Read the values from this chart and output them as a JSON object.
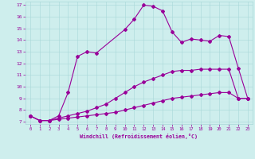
{
  "xlabel": "Windchill (Refroidissement éolien,°C)",
  "bg_color": "#ceeeed",
  "line_color": "#990099",
  "xlim": [
    -0.5,
    23.5
  ],
  "ylim": [
    6.8,
    17.3
  ],
  "yticks": [
    7,
    8,
    9,
    10,
    11,
    12,
    13,
    14,
    15,
    16,
    17
  ],
  "xticks": [
    0,
    1,
    2,
    3,
    4,
    5,
    6,
    7,
    8,
    9,
    10,
    11,
    12,
    13,
    14,
    15,
    16,
    17,
    18,
    19,
    20,
    21,
    22,
    23
  ],
  "line1_x": [
    0,
    1,
    2,
    3,
    4,
    5,
    6,
    7,
    10,
    11,
    12,
    13,
    14,
    15,
    16,
    17,
    18,
    19,
    20,
    21,
    22,
    23
  ],
  "line1_y": [
    7.5,
    7.1,
    7.1,
    7.5,
    9.5,
    12.6,
    13.0,
    12.9,
    14.9,
    15.8,
    17.0,
    16.9,
    16.5,
    14.7,
    13.8,
    14.1,
    14.0,
    13.9,
    14.4,
    14.3,
    11.6,
    9.0
  ],
  "line2_x": [
    0,
    1,
    2,
    3,
    4,
    5,
    6,
    7,
    8,
    9,
    10,
    11,
    12,
    13,
    14,
    15,
    16,
    17,
    18,
    19,
    20,
    21,
    22,
    23
  ],
  "line2_y": [
    7.5,
    7.1,
    7.1,
    7.3,
    7.5,
    7.7,
    7.9,
    8.2,
    8.5,
    9.0,
    9.5,
    10.0,
    10.4,
    10.7,
    11.0,
    11.3,
    11.4,
    11.4,
    11.5,
    11.5,
    11.5,
    11.5,
    9.0,
    9.0
  ],
  "line3_x": [
    0,
    1,
    2,
    3,
    4,
    5,
    6,
    7,
    8,
    9,
    10,
    11,
    12,
    13,
    14,
    15,
    16,
    17,
    18,
    19,
    20,
    21,
    22,
    23
  ],
  "line3_y": [
    7.5,
    7.1,
    7.1,
    7.2,
    7.3,
    7.4,
    7.5,
    7.6,
    7.7,
    7.8,
    8.0,
    8.2,
    8.4,
    8.6,
    8.8,
    9.0,
    9.1,
    9.2,
    9.3,
    9.4,
    9.5,
    9.5,
    9.0,
    9.0
  ]
}
